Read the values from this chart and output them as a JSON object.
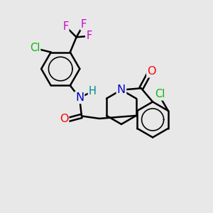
{
  "bg_color": "#e8e8e8",
  "bond_color": "#000000",
  "bond_width": 1.8,
  "atom_colors": {
    "N": "#0000cc",
    "O": "#ff0000",
    "Cl": "#00bb00",
    "F": "#cc00cc",
    "H": "#008888"
  },
  "font_size": 10.5,
  "fig_size": [
    3.0,
    3.0
  ],
  "dpi": 100
}
